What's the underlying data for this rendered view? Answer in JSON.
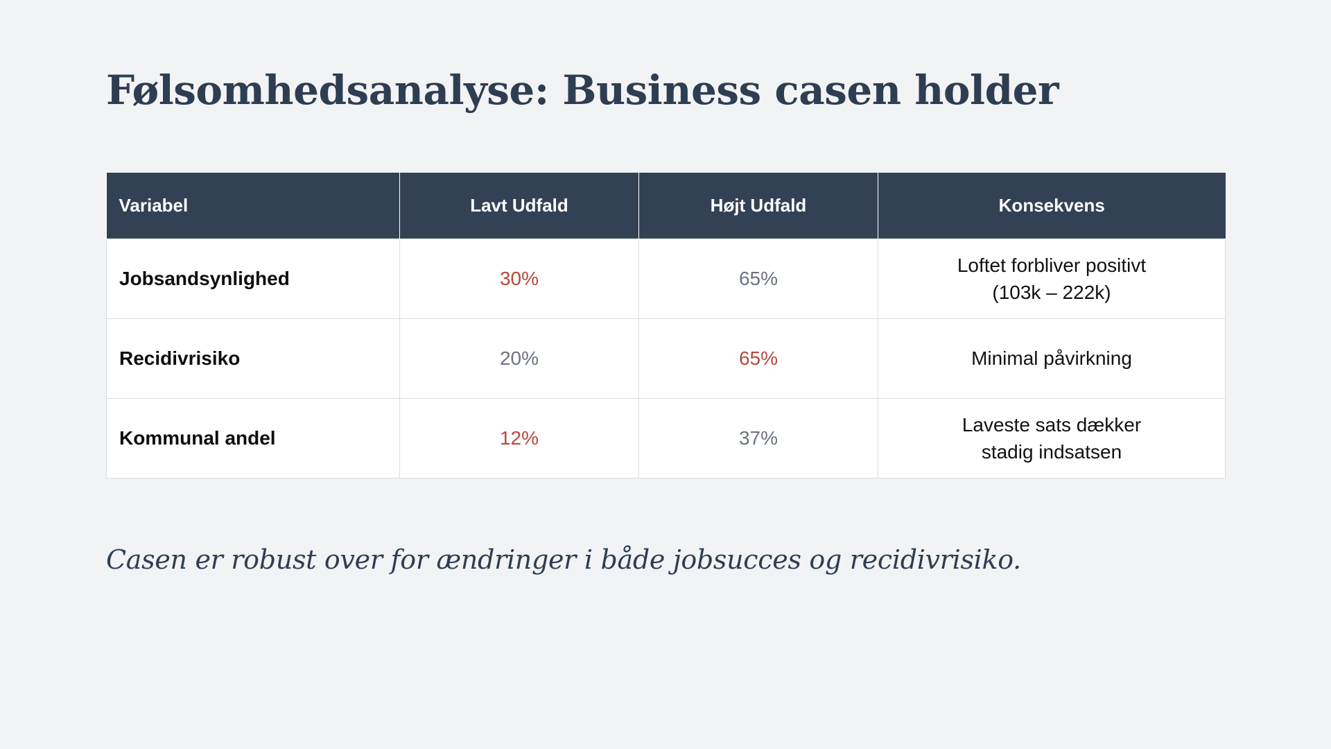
{
  "title": "Følsomhedsanalyse: Business casen holder",
  "table": {
    "headers": {
      "variable": "Variabel",
      "low": "Lavt Udfald",
      "high": "Højt Udfald",
      "consequence": "Konsekvens"
    },
    "rows": [
      {
        "variable": "Jobsandsynlighed",
        "low": "30%",
        "high": "65%",
        "consequence": "Loftet forbliver positivt\n(103k – 222k)",
        "emphasis": "low"
      },
      {
        "variable": "Recidivrisiko",
        "low": "20%",
        "high": "65%",
        "consequence": "Minimal påvirkning",
        "emphasis": "high"
      },
      {
        "variable": "Kommunal andel",
        "low": "12%",
        "high": "37%",
        "consequence": "Laveste sats dækker\nstadig indsatsen",
        "emphasis": "low"
      }
    ]
  },
  "footnote": "Casen er robust over for ændringer i både jobsucces og recidivrisiko.",
  "colors": {
    "header_bg": "#334155",
    "title": "#2e3e52",
    "emphasis_red": "#b5483f",
    "muted_gray": "#6b7280",
    "background": "#f2f3f5"
  }
}
